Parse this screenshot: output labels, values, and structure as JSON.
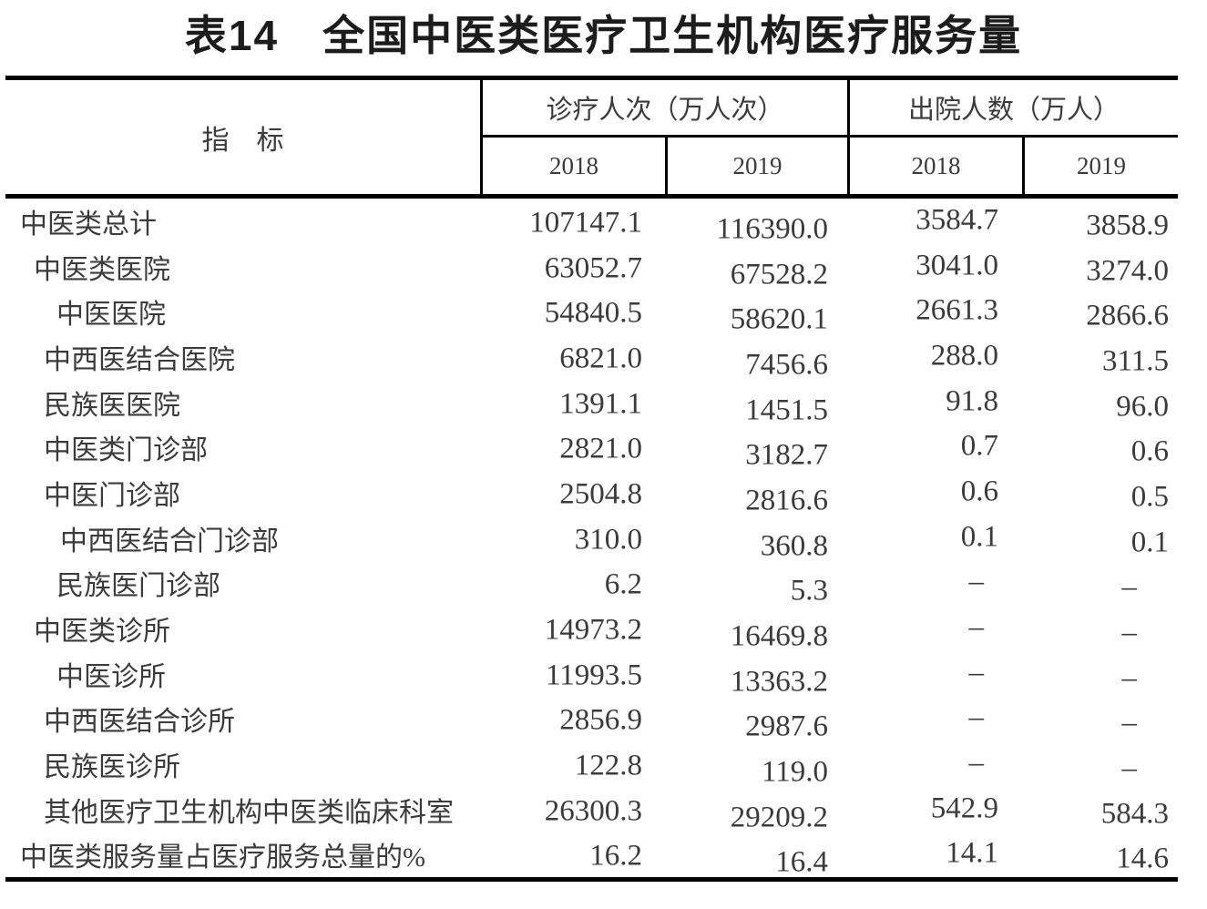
{
  "title": "表14　全国中医类医疗卫生机构医疗服务量",
  "table": {
    "indicator_header": "指　标",
    "missing_marker": "–",
    "col_groups": [
      {
        "label": "诊疗人次（万人次）",
        "years": [
          "2018",
          "2019"
        ]
      },
      {
        "label": "出院人数（万人）",
        "years": [
          "2018",
          "2019"
        ]
      }
    ],
    "rows": [
      {
        "label": "中医类总计",
        "values": [
          "107147.1",
          "116390.0",
          "3584.7",
          "3858.9"
        ]
      },
      {
        "label": "中医类医院",
        "values": [
          "63052.7",
          "67528.2",
          "3041.0",
          "3274.0"
        ]
      },
      {
        "label": "中医医院",
        "values": [
          "54840.5",
          "58620.1",
          "2661.3",
          "2866.6"
        ]
      },
      {
        "label": "中西医结合医院",
        "values": [
          "6821.0",
          "7456.6",
          "288.0",
          "311.5"
        ]
      },
      {
        "label": "民族医医院",
        "values": [
          "1391.1",
          "1451.5",
          "91.8",
          "96.0"
        ]
      },
      {
        "label": "中医类门诊部",
        "values": [
          "2821.0",
          "3182.7",
          "0.7",
          "0.6"
        ]
      },
      {
        "label": "中医门诊部",
        "values": [
          "2504.8",
          "2816.6",
          "0.6",
          "0.5"
        ]
      },
      {
        "label": "中西医结合门诊部",
        "values": [
          "310.0",
          "360.8",
          "0.1",
          "0.1"
        ]
      },
      {
        "label": "民族医门诊部",
        "values": [
          "6.2",
          "5.3",
          "–",
          "–"
        ]
      },
      {
        "label": "中医类诊所",
        "values": [
          "14973.2",
          "16469.8",
          "–",
          "–"
        ]
      },
      {
        "label": "中医诊所",
        "values": [
          "11993.5",
          "13363.2",
          "–",
          "–"
        ]
      },
      {
        "label": "中西医结合诊所",
        "values": [
          "2856.9",
          "2987.6",
          "–",
          "–"
        ]
      },
      {
        "label": "民族医诊所",
        "values": [
          "122.8",
          "119.0",
          "–",
          "–"
        ]
      },
      {
        "label": "其他医疗卫生机构中医类临床科室",
        "values": [
          "26300.3",
          "29209.2",
          "542.9",
          "584.3"
        ]
      },
      {
        "label": "中医类服务量占医疗服务总量的%",
        "values": [
          "16.2",
          "16.4",
          "14.1",
          "14.6"
        ]
      }
    ]
  }
}
